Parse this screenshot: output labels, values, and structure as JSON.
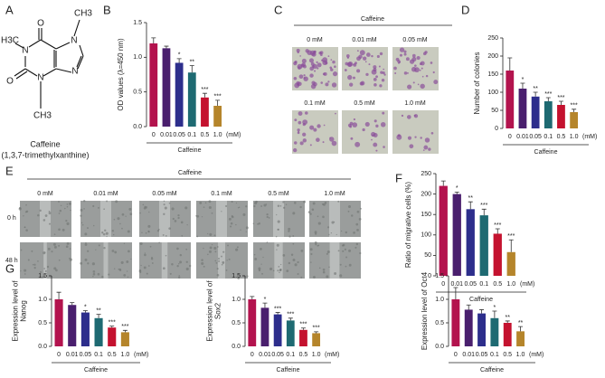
{
  "panels": [
    "A",
    "C",
    "E",
    "G"
  ],
  "molecule": {
    "name": "Caffeine",
    "systematic": "(1,3,7-trimethylxanthine)",
    "atoms": [
      "O",
      "H3C",
      "N",
      "N",
      "N",
      "N",
      "O",
      "CH3",
      "CH3"
    ]
  },
  "colony": {
    "title": "Caffeine",
    "labels": [
      "0 mM",
      "0.01 mM",
      "0.05 mM",
      "0.1 mM",
      "0.5 mM",
      "1.0 mM"
    ]
  },
  "migration": {
    "title": "Caffeine",
    "columns": [
      "0 mM",
      "0.01 mM",
      "0.05 mM",
      "0.1 mM",
      "0.5 mM",
      "1.0 mM"
    ],
    "rows": [
      "0 h",
      "48 h"
    ]
  },
  "chart_data": [
    {
      "type": "bar",
      "panel": "B",
      "ylabel": "OD values (λ=450 nm)",
      "xlabel": "Caffeine",
      "unit": "(mM)",
      "categories": [
        "0",
        "0.01",
        "0.05",
        "0.1",
        "0.5",
        "1.0"
      ],
      "values": [
        1.2,
        1.13,
        0.92,
        0.78,
        0.42,
        0.3
      ],
      "errors": [
        0.08,
        0.03,
        0.06,
        0.1,
        0.06,
        0.08
      ],
      "annotations": [
        null,
        null,
        "*",
        "**",
        "***",
        "***"
      ],
      "colors": [
        "#b3134e",
        "#4a1f6e",
        "#2d2e8c",
        "#1e6a72",
        "#c4122f",
        "#b5852b"
      ],
      "ylim": [
        0,
        1.5
      ],
      "yticks": [
        {
          "value": 0,
          "label": "0.0"
        },
        0.5,
        {
          "value": 1,
          "label": "1.0"
        },
        1.5
      ]
    },
    {
      "type": "bar",
      "panel": "D",
      "ylabel": "Number of colonies",
      "xlabel": "Caffeine",
      "unit": "(mM)",
      "categories": [
        "0",
        "0.01",
        "0.05",
        "0.1",
        "0.5",
        "1.0"
      ],
      "values": [
        160,
        110,
        88,
        75,
        65,
        45
      ],
      "errors": [
        35,
        15,
        12,
        10,
        10,
        8
      ],
      "annotations": [
        null,
        "*",
        "**",
        "***",
        "***",
        "***"
      ],
      "colors": [
        "#b3134e",
        "#4a1f6e",
        "#2d2e8c",
        "#1e6a72",
        "#c4122f",
        "#b5852b"
      ],
      "ylim": [
        0,
        250
      ],
      "yticks": [
        0,
        50,
        100,
        150,
        200,
        250
      ]
    },
    {
      "type": "bar",
      "panel": "F",
      "ylabel": "Ratio of migrative cells (%)",
      "xlabel": "Caffeine",
      "unit": "(mM)",
      "categories": [
        "0",
        "0.01",
        "0.05",
        "0.1",
        "0.5",
        "1.0"
      ],
      "values": [
        220,
        200,
        163,
        148,
        103,
        58
      ],
      "errors": [
        12,
        5,
        18,
        15,
        12,
        30
      ],
      "annotations": [
        null,
        "*",
        "**",
        "***",
        "***",
        "***"
      ],
      "colors": [
        "#b3134e",
        "#4a1f6e",
        "#2d2e8c",
        "#1e6a72",
        "#c4122f",
        "#b5852b"
      ],
      "ylim": [
        0,
        250
      ],
      "yticks": [
        0,
        50,
        100,
        150,
        200,
        250
      ]
    },
    {
      "type": "bar",
      "ylabel": [
        "Expression level of",
        "Nanog"
      ],
      "xlabel": "Caffeine",
      "unit": "(mM)",
      "categories": [
        "0",
        "0.01",
        "0.05",
        "0.1",
        "0.5",
        "1.0"
      ],
      "values": [
        1.0,
        0.88,
        0.72,
        0.6,
        0.4,
        0.3
      ],
      "errors": [
        0.15,
        0.05,
        0.04,
        0.08,
        0.03,
        0.04
      ],
      "annotations": [
        null,
        null,
        "*",
        "**",
        "***",
        "***"
      ],
      "colors": [
        "#b3134e",
        "#4a1f6e",
        "#2d2e8c",
        "#1e6a72",
        "#c4122f",
        "#b5852b"
      ],
      "ylim": [
        0,
        1.5
      ],
      "yticks": [
        {
          "value": 0,
          "label": "0.0"
        },
        0.5,
        {
          "value": 1,
          "label": "1.0"
        },
        1.5
      ]
    },
    {
      "type": "bar",
      "ylabel": [
        "Expression level of",
        "Sox2"
      ],
      "xlabel": "Caffeine",
      "unit": "(mM)",
      "categories": [
        "0",
        "0.01",
        "0.05",
        "0.1",
        "0.5",
        "1.0"
      ],
      "values": [
        1.0,
        0.82,
        0.68,
        0.55,
        0.35,
        0.28
      ],
      "errors": [
        0.06,
        0.1,
        0.04,
        0.05,
        0.04,
        0.03
      ],
      "annotations": [
        null,
        "*",
        "***",
        "***",
        "***",
        "***"
      ],
      "colors": [
        "#b3134e",
        "#4a1f6e",
        "#2d2e8c",
        "#1e6a72",
        "#c4122f",
        "#b5852b"
      ],
      "ylim": [
        0,
        1.5
      ],
      "yticks": [
        {
          "value": 0,
          "label": "0.0"
        },
        0.5,
        {
          "value": 1,
          "label": "1.0"
        },
        1.5
      ]
    },
    {
      "type": "bar",
      "ylabel": [
        "Expression level of Oct4"
      ],
      "xlabel": "Caffeine",
      "unit": "(mM)",
      "categories": [
        "0",
        "0.01",
        "0.05",
        "0.1",
        "0.5",
        "1.0"
      ],
      "values": [
        1.0,
        0.78,
        0.7,
        0.6,
        0.5,
        0.32
      ],
      "errors": [
        0.25,
        0.1,
        0.08,
        0.15,
        0.04,
        0.1
      ],
      "annotations": [
        null,
        null,
        null,
        "*",
        "**",
        "**"
      ],
      "colors": [
        "#b3134e",
        "#4a1f6e",
        "#2d2e8c",
        "#1e6a72",
        "#c4122f",
        "#b5852b"
      ],
      "ylim": [
        0,
        1.5
      ],
      "yticks": [
        {
          "value": 0,
          "label": "0.0"
        },
        0.5,
        {
          "value": 1,
          "label": "1.0"
        },
        1.5
      ]
    }
  ]
}
